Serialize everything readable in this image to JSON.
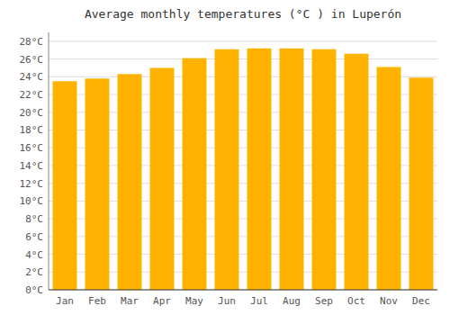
{
  "chart_data": {
    "type": "bar",
    "title": "Average monthly temperatures (°C ) in Luperón",
    "categories": [
      "Jan",
      "Feb",
      "Mar",
      "Apr",
      "May",
      "Jun",
      "Jul",
      "Aug",
      "Sep",
      "Oct",
      "Nov",
      "Dec"
    ],
    "values": [
      23.5,
      23.8,
      24.3,
      25.0,
      26.1,
      27.1,
      27.2,
      27.2,
      27.1,
      26.6,
      25.1,
      23.9
    ],
    "color": "#FFB300",
    "ylim": [
      0,
      29
    ],
    "yticks": [
      {
        "value": 0,
        "label": "0°C"
      },
      {
        "value": 2,
        "label": "2°C"
      },
      {
        "value": 4,
        "label": "4°C"
      },
      {
        "value": 6,
        "label": "6°C"
      },
      {
        "value": 8,
        "label": "8°C"
      },
      {
        "value": 10,
        "label": "10°C"
      },
      {
        "value": 12,
        "label": "12°C"
      },
      {
        "value": 14,
        "label": "14°C"
      },
      {
        "value": 16,
        "label": "16°C"
      },
      {
        "value": 18,
        "label": "18°C"
      },
      {
        "value": 20,
        "label": "20°C"
      },
      {
        "value": 22,
        "label": "22°C"
      },
      {
        "value": 24,
        "label": "24°C"
      },
      {
        "value": 26,
        "label": "26°C"
      },
      {
        "value": 28,
        "label": "28°C"
      }
    ],
    "grid": true
  }
}
